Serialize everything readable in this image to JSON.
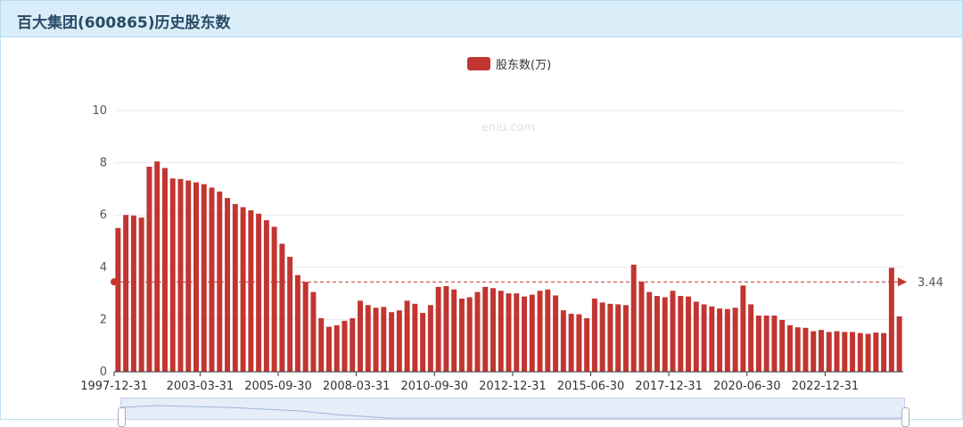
{
  "header": {
    "title": "百大集团(600865)历史股东数"
  },
  "watermark": "eniu.com",
  "legend": {
    "label": "股东数(万)"
  },
  "colors": {
    "bar": "#c23531",
    "markline": "#c23531",
    "header_bg": "#d9eef8"
  },
  "chart_data": {
    "type": "bar",
    "ylim": [
      0,
      10
    ],
    "yticks": [
      0,
      2,
      4,
      6,
      8,
      10
    ],
    "xtick_labels": [
      "1997-12-31",
      "2003-03-31",
      "2005-09-30",
      "2008-03-31",
      "2010-09-30",
      "2012-12-31",
      "2015-06-30",
      "2017-12-31",
      "2020-06-30",
      "2022-12-31"
    ],
    "xtick_index": [
      0,
      11,
      21,
      31,
      41,
      51,
      61,
      71,
      81,
      91
    ],
    "series": [
      {
        "name": "股东数(万)",
        "values": [
          5.5,
          6.0,
          5.98,
          5.9,
          7.85,
          8.05,
          7.8,
          7.4,
          7.38,
          7.32,
          7.25,
          7.18,
          7.05,
          6.9,
          6.65,
          6.42,
          6.3,
          6.18,
          6.05,
          5.8,
          5.55,
          4.9,
          4.4,
          3.7,
          3.44,
          3.05,
          2.05,
          1.72,
          1.78,
          1.95,
          2.05,
          2.72,
          2.55,
          2.45,
          2.48,
          2.28,
          2.35,
          2.72,
          2.6,
          2.25,
          2.55,
          3.25,
          3.28,
          3.15,
          2.8,
          2.85,
          3.05,
          3.25,
          3.2,
          3.1,
          3.0,
          3.0,
          2.88,
          2.95,
          3.1,
          3.15,
          2.92,
          2.35,
          2.22,
          2.2,
          2.05,
          2.8,
          2.65,
          2.6,
          2.58,
          2.55,
          4.1,
          3.45,
          3.05,
          2.9,
          2.85,
          3.1,
          2.9,
          2.88,
          2.68,
          2.58,
          2.5,
          2.42,
          2.4,
          2.45,
          3.3,
          2.58,
          2.15,
          2.15,
          2.15,
          1.98,
          1.78,
          1.7,
          1.68,
          1.55,
          1.6,
          1.52,
          1.55,
          1.52,
          1.52,
          1.48,
          1.45,
          1.5,
          1.48,
          3.98,
          2.12
        ]
      }
    ],
    "markline": {
      "value": 3.44,
      "label": "3.44"
    }
  }
}
